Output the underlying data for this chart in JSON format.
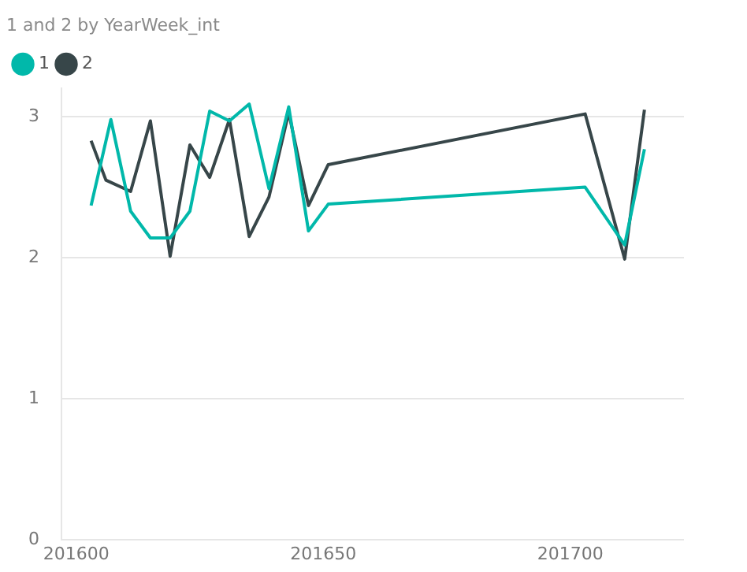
{
  "chart_data": {
    "type": "line",
    "title": "1 and 2 by YearWeek_int",
    "series": [
      {
        "name": "1",
        "color": "#01b8aa",
        "x": [
          201603,
          201607,
          201611,
          201615,
          201619,
          201623,
          201627,
          201631,
          201635,
          201639,
          201643,
          201647,
          201651,
          201703,
          201711,
          201715
        ],
        "values": [
          2.37,
          2.98,
          2.33,
          2.14,
          2.14,
          2.33,
          3.04,
          2.97,
          3.09,
          2.49,
          3.07,
          2.19,
          2.38,
          2.5,
          2.09,
          2.77
        ]
      },
      {
        "name": "2",
        "color": "#374649",
        "x": [
          201603,
          201606,
          201611,
          201615,
          201619,
          201623,
          201627,
          201631,
          201635,
          201639,
          201643,
          201647,
          201651,
          201703,
          201711,
          201715
        ],
        "values": [
          2.83,
          2.55,
          2.47,
          2.97,
          2.01,
          2.8,
          2.57,
          2.98,
          2.15,
          2.43,
          3.03,
          2.37,
          2.66,
          3.02,
          1.99,
          3.05
        ]
      }
    ],
    "xlim": [
      201597,
      201723
    ],
    "xticks": [
      201600,
      201650,
      201700
    ],
    "ylim": [
      0,
      3.2
    ],
    "yticks": [
      0,
      1,
      2,
      3
    ],
    "grid": "y",
    "legend": "top left",
    "marker": "none",
    "line_style": "solid"
  }
}
